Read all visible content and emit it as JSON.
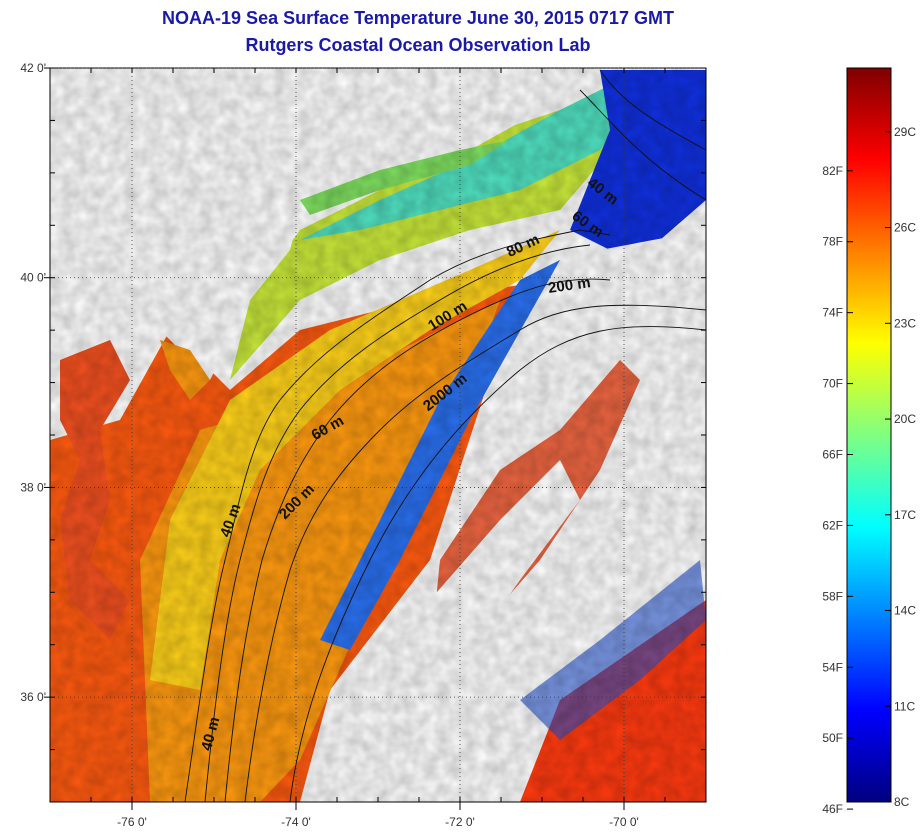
{
  "title": "NOAA-19 Sea Surface Temperature June 30, 2015 0717 GMT",
  "subtitle": "Rutgers Coastal Ocean Observation Lab",
  "map": {
    "lon_range": [
      -77.0,
      -69.0
    ],
    "lat_range": [
      35.0,
      42.0
    ],
    "lon_ticks": [
      {
        "value": -76,
        "label": "-76 0'"
      },
      {
        "value": -74,
        "label": "-74 0'"
      },
      {
        "value": -72,
        "label": "-72 0'"
      },
      {
        "value": -70,
        "label": "-70 0'"
      }
    ],
    "lat_ticks": [
      {
        "value": 42,
        "label": "42 0'"
      },
      {
        "value": 40,
        "label": "40 0'"
      },
      {
        "value": 38,
        "label": "38 0'"
      },
      {
        "value": 36,
        "label": "36 0'"
      }
    ],
    "grid": "dotted",
    "contour_labels": [
      "40 m",
      "60 m",
      "80 m",
      "200 m",
      "100 m",
      "2000 m",
      "60 m",
      "200 m",
      "40 m",
      "40 m"
    ]
  },
  "colorbar": {
    "min_c": 8,
    "max_c": 31,
    "celsius_ticks": [
      {
        "value": 29,
        "label": "29C"
      },
      {
        "value": 26,
        "label": "26C"
      },
      {
        "value": 23,
        "label": "23C"
      },
      {
        "value": 20,
        "label": "20C"
      },
      {
        "value": 17,
        "label": "17C"
      },
      {
        "value": 14,
        "label": "14C"
      },
      {
        "value": 11,
        "label": "11C"
      },
      {
        "value": 8,
        "label": "8C"
      }
    ],
    "fahrenheit_ticks": [
      {
        "value": 82,
        "label": "82F"
      },
      {
        "value": 78,
        "label": "78F"
      },
      {
        "value": 74,
        "label": "74F"
      },
      {
        "value": 70,
        "label": "70F"
      },
      {
        "value": 66,
        "label": "66F"
      },
      {
        "value": 62,
        "label": "62F"
      },
      {
        "value": 58,
        "label": "58F"
      },
      {
        "value": 54,
        "label": "54F"
      },
      {
        "value": 50,
        "label": "50F"
      },
      {
        "value": 46,
        "label": "46F"
      }
    ],
    "colors": [
      "#00007f",
      "#0000ff",
      "#0080ff",
      "#00ffff",
      "#80ff80",
      "#ffff00",
      "#ff8000",
      "#ff0000",
      "#7f0000"
    ]
  }
}
